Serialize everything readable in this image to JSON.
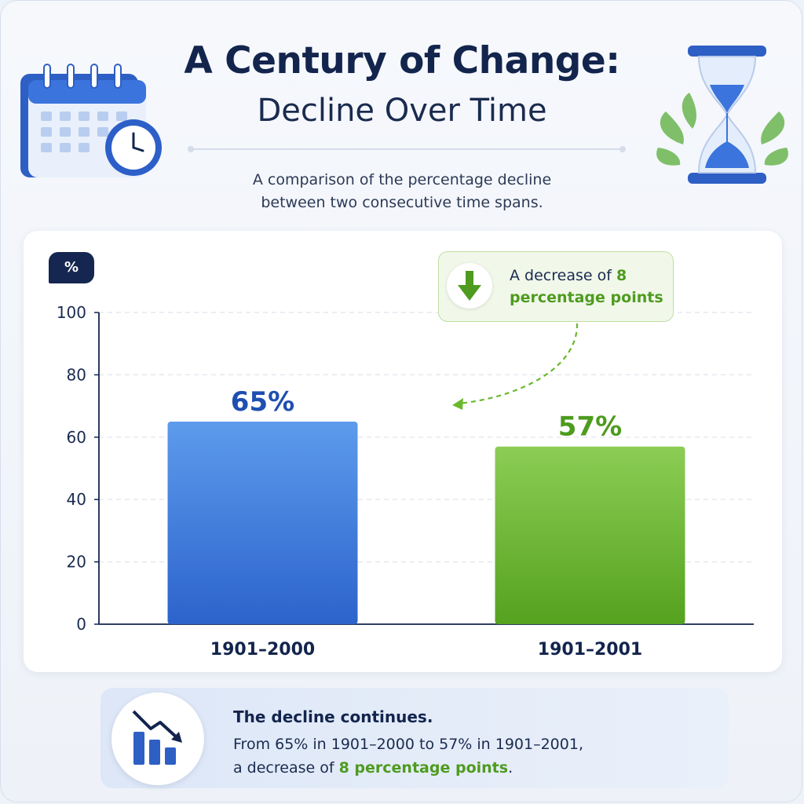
{
  "header": {
    "title_line1": "A Century of Change:",
    "title_line2": "Decline Over Time",
    "subtitle_line1": "A comparison of the percentage decline",
    "subtitle_line2": "between two consecutive time spans."
  },
  "icons": {
    "left": "calendar-clock-icon",
    "right": "hourglass-plant-icon",
    "callout": "arrow-down-icon",
    "summary": "bar-chart-decline-icon"
  },
  "callout": {
    "prefix": "A decrease of ",
    "highlight": "8 percentage points"
  },
  "summary": {
    "heading": "The decline continues.",
    "line1": "From 65% in 1901–2000 to 57% in 1901–2001,",
    "line2_prefix": "a decrease of ",
    "line2_highlight": "8 percentage points",
    "line2_suffix": "."
  },
  "colors": {
    "blue": "#3a7ae0",
    "green": "#6ab82e",
    "navy": "#13254d"
  },
  "chart_data": {
    "type": "bar",
    "ylabel": "%",
    "ylim": [
      0,
      100
    ],
    "yticks": [
      0,
      20,
      40,
      60,
      80,
      100
    ],
    "grid": true,
    "categories": [
      "1901–2000",
      "1901–2001"
    ],
    "values": [
      65,
      57
    ],
    "data_labels": [
      "65%",
      "57%"
    ]
  }
}
